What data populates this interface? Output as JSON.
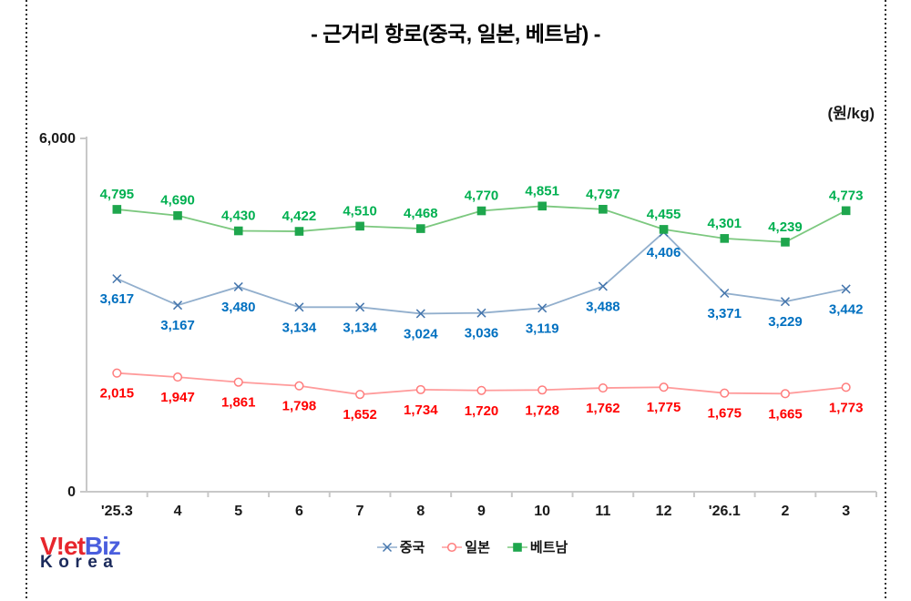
{
  "title": "- 근거리 항로(중국, 일본, 베트남) -",
  "unit_label": "(원/kg)",
  "chart_data": {
    "type": "line",
    "title": "- 근거리 항로(중국, 일본, 베트남) -",
    "ylabel": "(원/kg)",
    "ylim": [
      0,
      6000
    ],
    "grid": false,
    "legend_position": "bottom",
    "categories": [
      "'25.3",
      "4",
      "5",
      "6",
      "7",
      "8",
      "9",
      "10",
      "11",
      "12",
      "'26.1",
      "2",
      "3"
    ],
    "y_axis_ticks": [
      {
        "label": "6,000",
        "value": 6000
      },
      {
        "label": "0",
        "value": 0
      }
    ],
    "series": [
      {
        "name": "중국",
        "marker": "x",
        "label_position": "below",
        "line_color": "#92afcd",
        "marker_color": "#4576ad",
        "label_color": "#0070c0",
        "values": [
          3617,
          3167,
          3480,
          3134,
          3134,
          3024,
          3036,
          3119,
          3488,
          4406,
          3371,
          3229,
          3442
        ]
      },
      {
        "name": "일본",
        "marker": "circle-open",
        "label_position": "below",
        "line_color": "#ff9b9b",
        "marker_color": "#ff7d7d",
        "label_color": "#ff0000",
        "values": [
          2015,
          1947,
          1861,
          1798,
          1652,
          1734,
          1720,
          1728,
          1762,
          1775,
          1675,
          1665,
          1773
        ]
      },
      {
        "name": "베트남",
        "marker": "square",
        "label_position": "above",
        "line_color": "#7cc87f",
        "marker_color": "#1ea64d",
        "label_color": "#00b050",
        "values": [
          4795,
          4690,
          4430,
          4422,
          4510,
          4468,
          4770,
          4851,
          4797,
          4455,
          4301,
          4239,
          4773
        ]
      }
    ]
  },
  "logo": {
    "part1": "V!et",
    "part2": "Biz",
    "part3": "Korea"
  }
}
